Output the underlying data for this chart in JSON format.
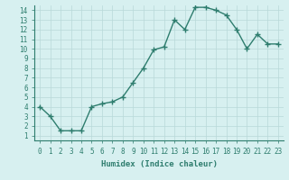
{
  "x": [
    0,
    1,
    2,
    3,
    4,
    5,
    6,
    7,
    8,
    9,
    10,
    11,
    12,
    13,
    14,
    15,
    16,
    17,
    18,
    19,
    20,
    21,
    22,
    23
  ],
  "y": [
    4.0,
    3.0,
    1.5,
    1.5,
    1.5,
    4.0,
    4.3,
    4.5,
    5.0,
    6.5,
    8.0,
    9.9,
    10.2,
    13.0,
    12.0,
    14.3,
    14.3,
    14.0,
    13.5,
    12.0,
    10.0,
    11.5,
    10.5,
    10.5
  ],
  "line_color": "#2e7d6e",
  "marker": "+",
  "marker_size": 4,
  "bg_color": "#d7f0f0",
  "grid_color": "#b8d8d8",
  "xlabel": "Humidex (Indice chaleur)",
  "xlim": [
    -0.5,
    23.5
  ],
  "ylim": [
    0.5,
    14.5
  ],
  "xticks": [
    0,
    1,
    2,
    3,
    4,
    5,
    6,
    7,
    8,
    9,
    10,
    11,
    12,
    13,
    14,
    15,
    16,
    17,
    18,
    19,
    20,
    21,
    22,
    23
  ],
  "yticks": [
    1,
    2,
    3,
    4,
    5,
    6,
    7,
    8,
    9,
    10,
    11,
    12,
    13,
    14
  ],
  "tick_fontsize": 5.5,
  "xlabel_fontsize": 6.5,
  "line_width": 1.0
}
